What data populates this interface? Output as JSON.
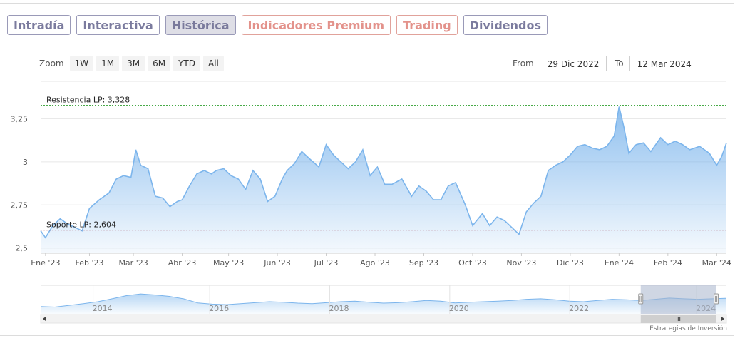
{
  "tabs": [
    {
      "label": "Intradía",
      "style": "normal"
    },
    {
      "label": "Interactiva",
      "style": "normal"
    },
    {
      "label": "Histórica",
      "style": "active"
    },
    {
      "label": "Indicadores Premium",
      "style": "premium"
    },
    {
      "label": "Trading",
      "style": "premium"
    },
    {
      "label": "Dividendos",
      "style": "normal"
    }
  ],
  "zoom": {
    "label": "Zoom",
    "buttons": [
      "1W",
      "1M",
      "3M",
      "6M",
      "YTD",
      "All"
    ]
  },
  "range": {
    "from_label": "From",
    "from_value": "29 Dic 2022",
    "to_label": "To",
    "to_value": "12 Mar 2024"
  },
  "credit": "Estrategias de Inversión",
  "colors": {
    "line": "#7cb5ec",
    "resistance": "#2e9e2e",
    "support": "#8b1a2b",
    "navigator_mask": "#a8b4cc"
  },
  "chart_data": {
    "type": "area",
    "ylim": [
      2.47,
      3.38
    ],
    "yticks": [
      {
        "v": 2.5,
        "label": "2,5"
      },
      {
        "v": 2.75,
        "label": "2,75"
      },
      {
        "v": 3,
        "label": "3"
      },
      {
        "v": 3.25,
        "label": "3,25"
      }
    ],
    "xticks": [
      {
        "t": 0.1,
        "label": "Ene '23"
      },
      {
        "t": 1.0,
        "label": "Feb '23"
      },
      {
        "t": 1.9,
        "label": "Mar '23"
      },
      {
        "t": 2.9,
        "label": "Abr '23"
      },
      {
        "t": 3.85,
        "label": "May '23"
      },
      {
        "t": 4.85,
        "label": "Jun '23"
      },
      {
        "t": 5.85,
        "label": "Jul '23"
      },
      {
        "t": 6.85,
        "label": "Ago '23"
      },
      {
        "t": 7.85,
        "label": "Sep '23"
      },
      {
        "t": 8.85,
        "label": "Oct '23"
      },
      {
        "t": 9.85,
        "label": "Nov '23"
      },
      {
        "t": 10.85,
        "label": "Dic '23"
      },
      {
        "t": 11.85,
        "label": "Ene '24"
      },
      {
        "t": 12.85,
        "label": "Feb '24"
      },
      {
        "t": 13.85,
        "label": "Mar '24"
      }
    ],
    "x_months": [
      0,
      0.1,
      0.25,
      0.4,
      0.55,
      0.7,
      0.85,
      1.0,
      1.2,
      1.4,
      1.55,
      1.7,
      1.85,
      1.95,
      2.05,
      2.2,
      2.35,
      2.5,
      2.65,
      2.8,
      2.9,
      3.05,
      3.2,
      3.35,
      3.5,
      3.6,
      3.75,
      3.9,
      4.05,
      4.2,
      4.35,
      4.5,
      4.65,
      4.8,
      4.95,
      5.05,
      5.2,
      5.35,
      5.5,
      5.7,
      5.85,
      6.0,
      6.15,
      6.3,
      6.45,
      6.6,
      6.75,
      6.9,
      7.05,
      7.2,
      7.4,
      7.6,
      7.75,
      7.9,
      8.05,
      8.2,
      8.35,
      8.5,
      8.7,
      8.85,
      9.05,
      9.2,
      9.35,
      9.5,
      9.65,
      9.8,
      9.95,
      10.1,
      10.25,
      10.4,
      10.55,
      10.7,
      10.85,
      11.0,
      11.15,
      11.3,
      11.45,
      11.6,
      11.75,
      11.85,
      11.95,
      12.05,
      12.2,
      12.35,
      12.5,
      12.7,
      12.85,
      13.0,
      13.15,
      13.3,
      13.5,
      13.7,
      13.85,
      13.95,
      14.05
    ],
    "y_values": [
      2.6,
      2.56,
      2.63,
      2.67,
      2.64,
      2.62,
      2.6,
      2.73,
      2.78,
      2.82,
      2.9,
      2.92,
      2.91,
      3.07,
      2.98,
      2.96,
      2.8,
      2.79,
      2.74,
      2.77,
      2.78,
      2.86,
      2.93,
      2.95,
      2.93,
      2.95,
      2.96,
      2.92,
      2.9,
      2.84,
      2.95,
      2.9,
      2.77,
      2.8,
      2.9,
      2.95,
      2.99,
      3.06,
      3.02,
      2.97,
      3.1,
      3.04,
      3.0,
      2.96,
      3.0,
      3.07,
      2.92,
      2.97,
      2.87,
      2.87,
      2.9,
      2.8,
      2.86,
      2.83,
      2.78,
      2.78,
      2.86,
      2.88,
      2.75,
      2.63,
      2.7,
      2.63,
      2.68,
      2.66,
      2.62,
      2.58,
      2.71,
      2.76,
      2.8,
      2.95,
      2.98,
      3.0,
      3.04,
      3.09,
      3.1,
      3.08,
      3.07,
      3.09,
      3.15,
      3.32,
      3.2,
      3.05,
      3.1,
      3.11,
      3.06,
      3.14,
      3.1,
      3.12,
      3.1,
      3.07,
      3.09,
      3.05,
      2.98,
      3.03,
      3.11
    ],
    "resistance": {
      "value": 3.328,
      "label": "Resistencia LP: 3,328"
    },
    "support": {
      "value": 2.604,
      "label": "Soporte LP: 2,604"
    }
  },
  "navigator": {
    "years": [
      "2014",
      "2016",
      "2018",
      "2020",
      "2022",
      "2024"
    ],
    "year_t": [
      0.09,
      0.26,
      0.435,
      0.61,
      0.785,
      0.97
    ],
    "profile": [
      0.3,
      0.28,
      0.35,
      0.42,
      0.5,
      0.62,
      0.75,
      0.82,
      0.78,
      0.72,
      0.62,
      0.45,
      0.4,
      0.38,
      0.42,
      0.46,
      0.5,
      0.48,
      0.44,
      0.42,
      0.46,
      0.5,
      0.52,
      0.48,
      0.44,
      0.46,
      0.5,
      0.55,
      0.52,
      0.45,
      0.48,
      0.5,
      0.52,
      0.55,
      0.6,
      0.62,
      0.58,
      0.52,
      0.5,
      0.55,
      0.6,
      0.58,
      0.55,
      0.6,
      0.65,
      0.62,
      0.6,
      0.62,
      0.64
    ],
    "selection": [
      0.875,
      0.985
    ]
  }
}
